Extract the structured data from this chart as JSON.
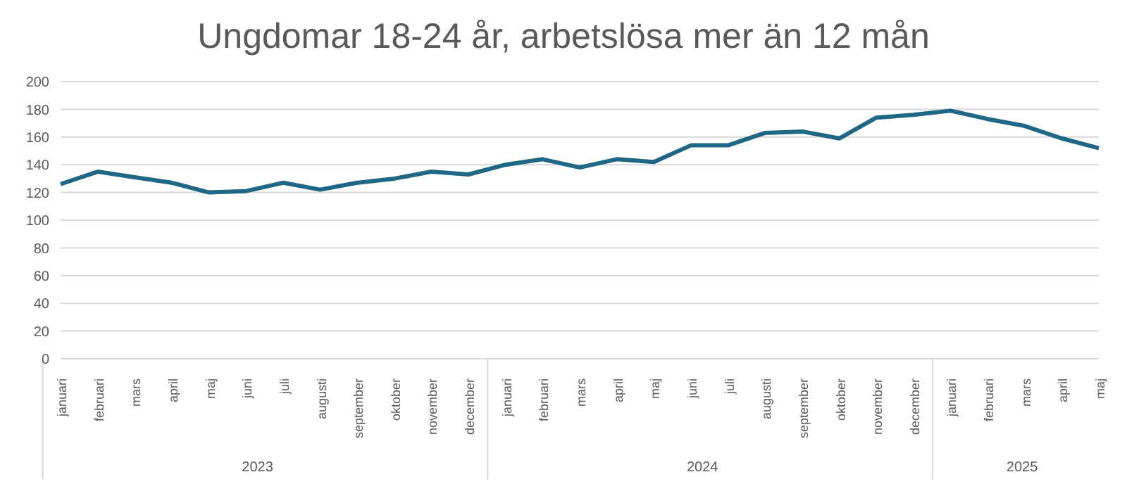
{
  "chart_data": {
    "type": "line",
    "title": "Ungdomar 18-24 år, arbetslösa mer än 12 mån",
    "categories": [
      "januari",
      "februari",
      "mars",
      "april",
      "maj",
      "juni",
      "juli",
      "augusti",
      "september",
      "oktober",
      "november",
      "december",
      "januari",
      "februari",
      "mars",
      "april",
      "maj",
      "juni",
      "juli",
      "augusti",
      "september",
      "oktober",
      "november",
      "december",
      "januari",
      "februari",
      "mars",
      "april",
      "maj"
    ],
    "series": [
      {
        "color": "#1f6784",
        "values": [
          126,
          135,
          131,
          127,
          120,
          121,
          127,
          122,
          127,
          130,
          135,
          133,
          140,
          144,
          138,
          144,
          142,
          154,
          154,
          163,
          164,
          159,
          174,
          176,
          179,
          173,
          168,
          159,
          152
        ]
      }
    ],
    "annotations": [
      "2023",
      "2024",
      "2025"
    ],
    "ylim": [
      0,
      200
    ],
    "yticks": [
      0,
      20,
      40,
      60,
      80,
      100,
      120,
      140,
      160,
      180,
      200
    ],
    "grid": "y",
    "legend": false,
    "marker": "none",
    "line_style": "solid"
  }
}
